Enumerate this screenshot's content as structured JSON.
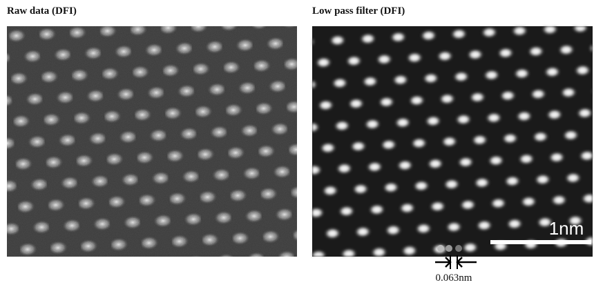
{
  "panels": [
    {
      "title": "Raw data (DFI)"
    },
    {
      "title": "Low pass filter (DFI)"
    }
  ],
  "scale_bar": {
    "label": "1nm"
  },
  "measurement": {
    "label": "0.063nm"
  }
}
